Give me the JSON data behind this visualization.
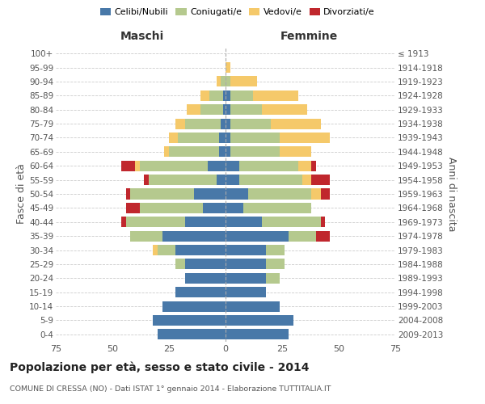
{
  "age_groups": [
    "0-4",
    "5-9",
    "10-14",
    "15-19",
    "20-24",
    "25-29",
    "30-34",
    "35-39",
    "40-44",
    "45-49",
    "50-54",
    "55-59",
    "60-64",
    "65-69",
    "70-74",
    "75-79",
    "80-84",
    "85-89",
    "90-94",
    "95-99",
    "100+"
  ],
  "birth_years": [
    "2009-2013",
    "2004-2008",
    "1999-2003",
    "1994-1998",
    "1989-1993",
    "1984-1988",
    "1979-1983",
    "1974-1978",
    "1969-1973",
    "1964-1968",
    "1959-1963",
    "1954-1958",
    "1949-1953",
    "1944-1948",
    "1939-1943",
    "1934-1938",
    "1929-1933",
    "1924-1928",
    "1919-1923",
    "1914-1918",
    "≤ 1913"
  ],
  "maschi": {
    "celibi": [
      30,
      32,
      28,
      22,
      18,
      18,
      22,
      28,
      18,
      10,
      14,
      4,
      8,
      3,
      3,
      2,
      1,
      1,
      0,
      0,
      0
    ],
    "coniugati": [
      0,
      0,
      0,
      0,
      0,
      4,
      8,
      14,
      26,
      28,
      28,
      30,
      30,
      22,
      18,
      16,
      10,
      6,
      2,
      0,
      0
    ],
    "vedovi": [
      0,
      0,
      0,
      0,
      0,
      0,
      2,
      0,
      0,
      0,
      0,
      0,
      2,
      2,
      4,
      4,
      6,
      4,
      2,
      0,
      0
    ],
    "divorziati": [
      0,
      0,
      0,
      0,
      0,
      0,
      0,
      0,
      2,
      6,
      2,
      2,
      6,
      0,
      0,
      0,
      0,
      0,
      0,
      0,
      0
    ]
  },
  "femmine": {
    "nubili": [
      28,
      30,
      24,
      18,
      18,
      18,
      18,
      28,
      16,
      8,
      10,
      6,
      6,
      2,
      2,
      2,
      2,
      2,
      0,
      0,
      0
    ],
    "coniugate": [
      0,
      0,
      0,
      0,
      6,
      8,
      8,
      12,
      26,
      30,
      28,
      28,
      26,
      22,
      22,
      18,
      14,
      10,
      2,
      0,
      0
    ],
    "vedove": [
      0,
      0,
      0,
      0,
      0,
      0,
      0,
      0,
      0,
      0,
      4,
      4,
      6,
      14,
      22,
      22,
      20,
      20,
      12,
      2,
      0
    ],
    "divorziate": [
      0,
      0,
      0,
      0,
      0,
      0,
      0,
      6,
      2,
      0,
      4,
      8,
      2,
      0,
      0,
      0,
      0,
      0,
      0,
      0,
      0
    ]
  },
  "colors": {
    "celibi_nubili": "#4878a8",
    "coniugati": "#b5c98e",
    "vedovi": "#f5c96a",
    "divorziati": "#c0272d"
  },
  "xlim": 75,
  "title": "Popolazione per età, sesso e stato civile - 2014",
  "subtitle": "COMUNE DI CRESSA (NO) - Dati ISTAT 1° gennaio 2014 - Elaborazione TUTTITALIA.IT",
  "ylabel_left": "Fasce di età",
  "ylabel_right": "Anni di nascita",
  "xlabel_left": "Maschi",
  "xlabel_right": "Femmine",
  "bg_color": "#ffffff",
  "grid_color": "#cccccc"
}
